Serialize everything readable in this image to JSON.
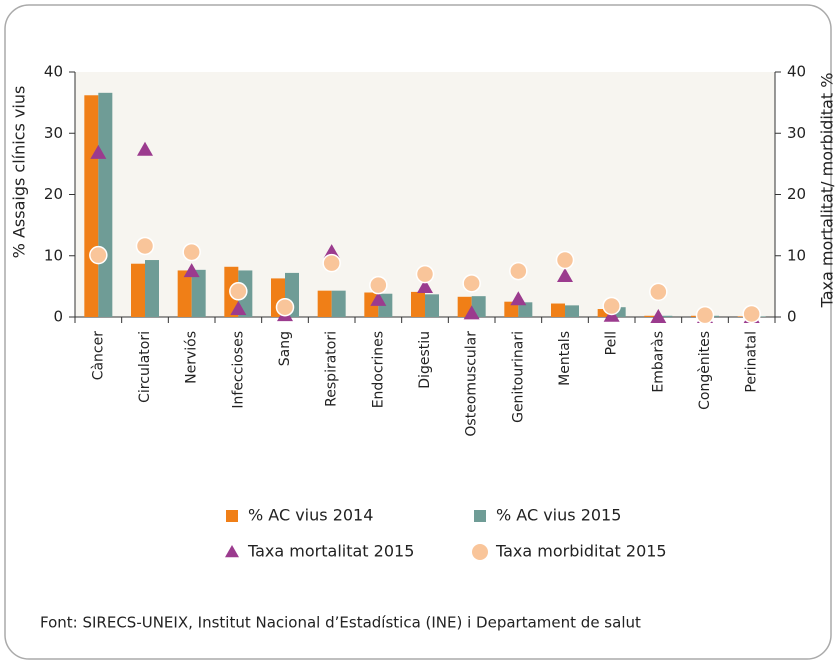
{
  "chart_data": {
    "type": "bar",
    "categories": [
      "Càncer",
      "Circulatori",
      "Nerviós",
      "Infeccioses",
      "Sang",
      "Respiratori",
      "Endocrines",
      "Digestiu",
      "Osteomuscular",
      "Genitourinari",
      "Mentals",
      "Pell",
      "Embaràs",
      "Congènites",
      "Perinatal"
    ],
    "series": [
      {
        "name": "% AC vius 2014",
        "color": "#f07f17",
        "type": "bar",
        "values": [
          36.2,
          8.7,
          7.6,
          8.2,
          6.3,
          4.3,
          4.0,
          4.1,
          3.3,
          2.5,
          2.2,
          1.3,
          0.2,
          0.2,
          0.1
        ]
      },
      {
        "name": "% AC vius 2015",
        "color": "#6f9c96",
        "type": "bar",
        "values": [
          36.6,
          9.3,
          7.7,
          7.6,
          7.2,
          4.3,
          3.8,
          3.7,
          3.4,
          2.4,
          1.9,
          1.6,
          0.2,
          0.2,
          0.1
        ]
      },
      {
        "name": "Taxa mortalitat 2015",
        "color": "#9b3b8e",
        "type": "triangle",
        "axis": "y2",
        "values": [
          26.8,
          27.3,
          7.5,
          1.3,
          0.3,
          10.6,
          2.8,
          4.9,
          0.6,
          2.9,
          6.7,
          0.2,
          0,
          0,
          0
        ]
      },
      {
        "name": "Taxa morbiditat 2015",
        "color": "#f9c59a",
        "type": "circle",
        "axis": "y2",
        "values": [
          10.1,
          11.6,
          10.6,
          4.2,
          1.6,
          8.8,
          5.2,
          7.0,
          5.5,
          7.5,
          9.3,
          1.8,
          4.1,
          0.3,
          0.5
        ]
      }
    ],
    "y_label": "% Assaigs clínics vius",
    "y2_label": "Taxa mortalitat/ morbiditat %",
    "ylim": [
      0,
      40
    ],
    "yticks": [
      0,
      10,
      20,
      30,
      40
    ],
    "y2lim": [
      0,
      40
    ],
    "y2ticks": [
      0,
      10,
      20,
      30,
      40
    ],
    "source": "Font: SIRECS-UNEIX, Institut Nacional d’Estadística (INE) i Departament de salut"
  }
}
